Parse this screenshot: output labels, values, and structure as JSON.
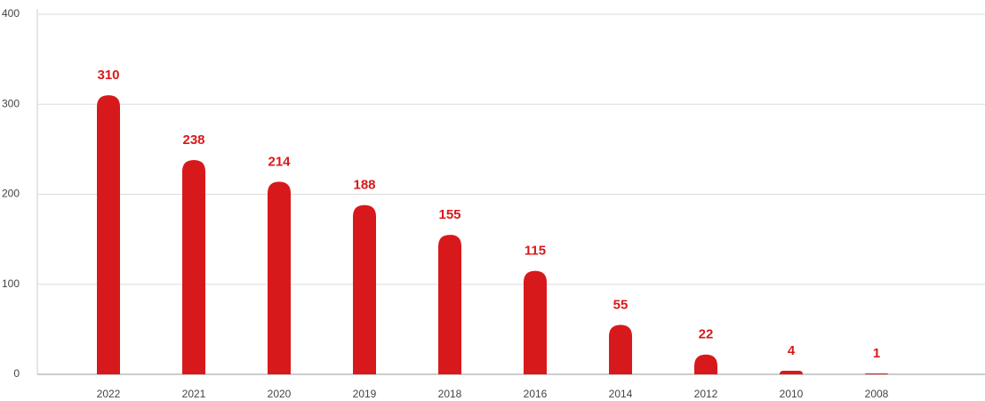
{
  "chart_data": {
    "type": "bar",
    "categories": [
      "2022",
      "2021",
      "2020",
      "2019",
      "2018",
      "2016",
      "2014",
      "2012",
      "2010",
      "2008"
    ],
    "values": [
      310,
      238,
      214,
      188,
      155,
      115,
      55,
      22,
      4,
      1
    ],
    "color": "#d7191c",
    "ylim": [
      0,
      400
    ],
    "yticks": [
      0,
      100,
      200,
      300,
      400
    ],
    "grid": true
  }
}
